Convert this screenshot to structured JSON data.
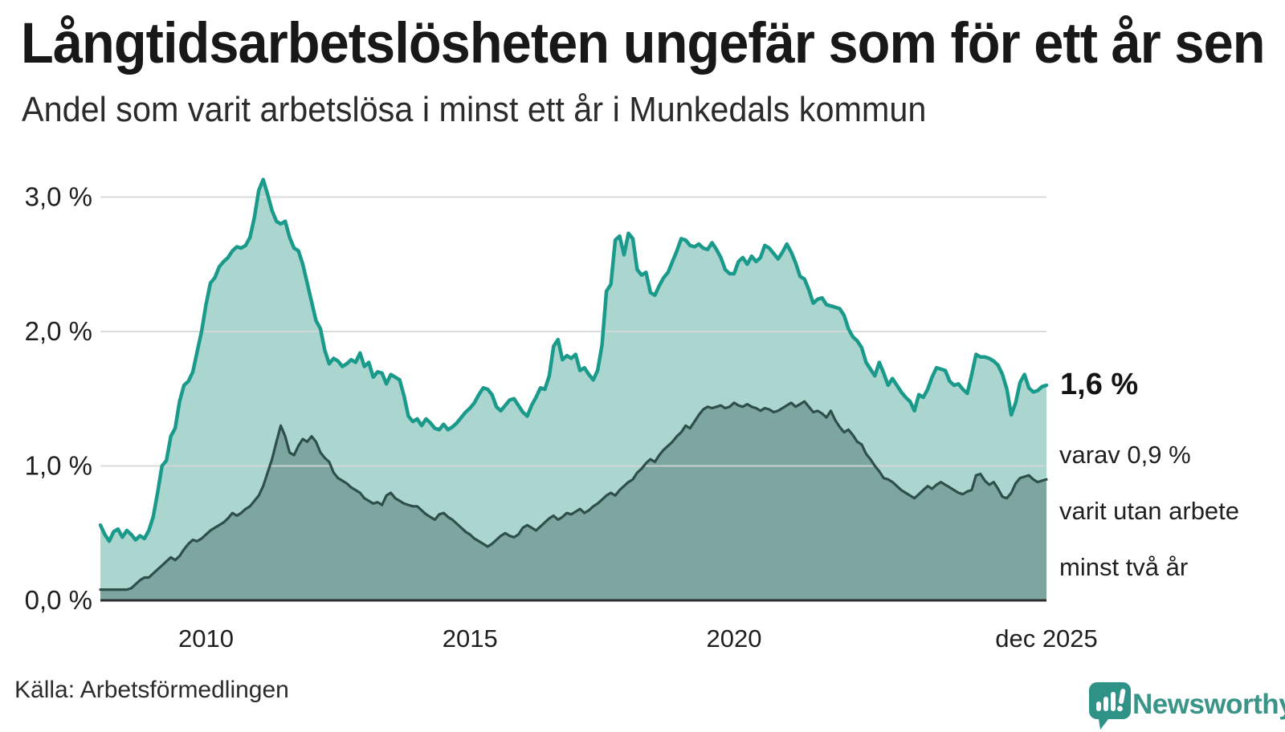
{
  "header": {
    "title": "Långtidsarbetslösheten ungefär som för ett år sen",
    "subtitle": "Andel som varit arbetslösa i minst ett år i Munkedals kommun"
  },
  "annotations": {
    "end_value": "1,6 %",
    "sub_line1": "varav 0,9 %",
    "sub_line2": "varit utan arbete",
    "sub_line3": "minst två år"
  },
  "footer": {
    "source": "Källa: Arbetsförmedlingen",
    "brand": "Newsworthy"
  },
  "colors": {
    "series1_line": "#199a8b",
    "series1_fill": "#abd6cf",
    "series2_line": "#2f4f4b",
    "series2_fill": "#7ea6a0",
    "grid": "#d4d7d7",
    "axis": "#2d2d2d",
    "brand_teal": "#2f9287"
  },
  "chart_data": {
    "type": "area",
    "title": "Långtidsarbetslösheten ungefär som för ett år sen",
    "subtitle": "Andel som varit arbetslösa i minst ett år i Munkedals kommun",
    "x_start": "jan 2008",
    "x_end": "dec 2025",
    "x_unit": "month",
    "ylim": [
      0,
      3.3
    ],
    "grid": true,
    "legend": "none",
    "y_ticks": [
      {
        "value": 0,
        "label": "0,0 %"
      },
      {
        "value": 1,
        "label": "1,0 %"
      },
      {
        "value": 2,
        "label": "2,0 %"
      },
      {
        "value": 3,
        "label": "3,0 %"
      }
    ],
    "x_ticks": [
      {
        "month_index": 24,
        "label": "2010"
      },
      {
        "month_index": 84,
        "label": "2015"
      },
      {
        "month_index": 144,
        "label": "2020"
      },
      {
        "month_index": 215,
        "label": "dec 2025"
      }
    ],
    "series": [
      {
        "name": "Arbetslösa minst ett år",
        "end_value_label": "1,6 %",
        "values": [
          0.56,
          0.49,
          0.44,
          0.51,
          0.53,
          0.47,
          0.52,
          0.49,
          0.45,
          0.48,
          0.46,
          0.52,
          0.62,
          0.8,
          1.0,
          1.04,
          1.22,
          1.28,
          1.48,
          1.6,
          1.63,
          1.7,
          1.85,
          2.0,
          2.2,
          2.36,
          2.4,
          2.48,
          2.52,
          2.55,
          2.6,
          2.63,
          2.62,
          2.64,
          2.7,
          2.85,
          3.05,
          3.13,
          3.02,
          2.9,
          2.82,
          2.8,
          2.82,
          2.7,
          2.62,
          2.6,
          2.5,
          2.36,
          2.22,
          2.08,
          2.02,
          1.86,
          1.76,
          1.8,
          1.78,
          1.74,
          1.76,
          1.79,
          1.77,
          1.84,
          1.74,
          1.77,
          1.66,
          1.7,
          1.69,
          1.61,
          1.68,
          1.66,
          1.64,
          1.52,
          1.37,
          1.33,
          1.35,
          1.3,
          1.35,
          1.32,
          1.28,
          1.27,
          1.31,
          1.27,
          1.29,
          1.32,
          1.36,
          1.4,
          1.43,
          1.47,
          1.53,
          1.58,
          1.57,
          1.53,
          1.44,
          1.41,
          1.45,
          1.49,
          1.5,
          1.45,
          1.4,
          1.37,
          1.45,
          1.51,
          1.58,
          1.57,
          1.67,
          1.89,
          1.94,
          1.79,
          1.82,
          1.8,
          1.83,
          1.71,
          1.73,
          1.68,
          1.64,
          1.71,
          1.9,
          2.3,
          2.35,
          2.68,
          2.71,
          2.57,
          2.73,
          2.69,
          2.46,
          2.42,
          2.44,
          2.29,
          2.27,
          2.34,
          2.4,
          2.44,
          2.52,
          2.6,
          2.69,
          2.68,
          2.64,
          2.63,
          2.65,
          2.62,
          2.61,
          2.66,
          2.61,
          2.55,
          2.46,
          2.43,
          2.43,
          2.52,
          2.55,
          2.5,
          2.56,
          2.52,
          2.55,
          2.64,
          2.62,
          2.58,
          2.54,
          2.59,
          2.65,
          2.59,
          2.51,
          2.41,
          2.39,
          2.31,
          2.21,
          2.24,
          2.25,
          2.2,
          2.19,
          2.18,
          2.17,
          2.12,
          2.02,
          1.96,
          1.93,
          1.88,
          1.77,
          1.72,
          1.67,
          1.77,
          1.69,
          1.6,
          1.65,
          1.6,
          1.55,
          1.51,
          1.48,
          1.41,
          1.53,
          1.51,
          1.57,
          1.66,
          1.73,
          1.72,
          1.71,
          1.63,
          1.6,
          1.61,
          1.57,
          1.54,
          1.68,
          1.83,
          1.81,
          1.81,
          1.8,
          1.78,
          1.75,
          1.68,
          1.57,
          1.38,
          1.47,
          1.62,
          1.68,
          1.58,
          1.55,
          1.56,
          1.59,
          1.6
        ]
      },
      {
        "name": "varav utan arbete minst två år",
        "end_value_label": "0,9 %",
        "values": [
          0.08,
          0.08,
          0.08,
          0.08,
          0.08,
          0.08,
          0.08,
          0.09,
          0.12,
          0.15,
          0.17,
          0.17,
          0.2,
          0.23,
          0.26,
          0.29,
          0.32,
          0.3,
          0.33,
          0.38,
          0.42,
          0.45,
          0.44,
          0.46,
          0.49,
          0.52,
          0.54,
          0.56,
          0.58,
          0.61,
          0.65,
          0.63,
          0.65,
          0.68,
          0.7,
          0.74,
          0.78,
          0.85,
          0.95,
          1.05,
          1.18,
          1.3,
          1.22,
          1.1,
          1.08,
          1.15,
          1.2,
          1.18,
          1.22,
          1.18,
          1.1,
          1.06,
          1.03,
          0.95,
          0.91,
          0.89,
          0.87,
          0.84,
          0.82,
          0.8,
          0.76,
          0.74,
          0.72,
          0.73,
          0.71,
          0.78,
          0.8,
          0.76,
          0.74,
          0.72,
          0.71,
          0.7,
          0.7,
          0.67,
          0.64,
          0.62,
          0.6,
          0.64,
          0.65,
          0.62,
          0.6,
          0.57,
          0.54,
          0.51,
          0.49,
          0.46,
          0.44,
          0.42,
          0.4,
          0.42,
          0.45,
          0.48,
          0.5,
          0.48,
          0.47,
          0.49,
          0.54,
          0.56,
          0.54,
          0.52,
          0.55,
          0.58,
          0.61,
          0.63,
          0.6,
          0.62,
          0.65,
          0.64,
          0.66,
          0.68,
          0.65,
          0.67,
          0.7,
          0.72,
          0.75,
          0.78,
          0.8,
          0.78,
          0.82,
          0.85,
          0.88,
          0.9,
          0.95,
          0.98,
          1.02,
          1.05,
          1.03,
          1.08,
          1.12,
          1.15,
          1.18,
          1.22,
          1.25,
          1.3,
          1.28,
          1.33,
          1.38,
          1.42,
          1.44,
          1.43,
          1.44,
          1.45,
          1.43,
          1.44,
          1.47,
          1.45,
          1.44,
          1.46,
          1.44,
          1.43,
          1.41,
          1.43,
          1.42,
          1.4,
          1.41,
          1.43,
          1.45,
          1.47,
          1.44,
          1.46,
          1.48,
          1.44,
          1.4,
          1.41,
          1.39,
          1.36,
          1.41,
          1.34,
          1.29,
          1.25,
          1.27,
          1.23,
          1.18,
          1.16,
          1.09,
          1.05,
          1.0,
          0.96,
          0.91,
          0.9,
          0.88,
          0.85,
          0.82,
          0.8,
          0.78,
          0.76,
          0.79,
          0.82,
          0.85,
          0.83,
          0.86,
          0.88,
          0.86,
          0.84,
          0.82,
          0.8,
          0.79,
          0.81,
          0.82,
          0.93,
          0.94,
          0.89,
          0.86,
          0.88,
          0.83,
          0.77,
          0.76,
          0.8,
          0.87,
          0.91,
          0.92,
          0.93,
          0.9,
          0.88,
          0.89,
          0.9
        ]
      }
    ]
  }
}
